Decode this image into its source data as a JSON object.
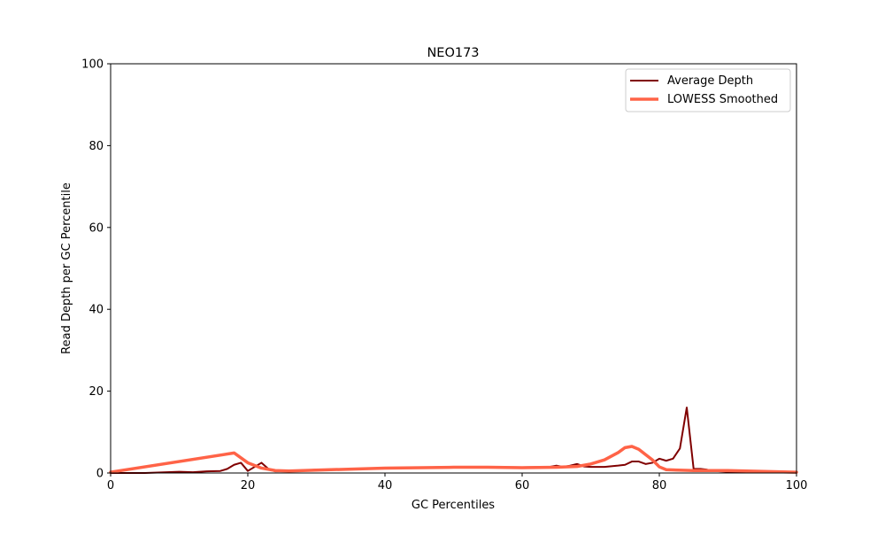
{
  "chart_data": {
    "type": "line",
    "title": "NEO173",
    "xlabel": "GC Percentiles",
    "ylabel": "Read Depth per GC Percentile",
    "xlim": [
      0,
      100
    ],
    "ylim": [
      0,
      100
    ],
    "x_ticks": [
      0,
      20,
      40,
      60,
      80,
      100
    ],
    "y_ticks": [
      0,
      20,
      40,
      60,
      80,
      100
    ],
    "grid": false,
    "legend_position": "top-right",
    "series": [
      {
        "name": "Average Depth",
        "color": "#800000",
        "x": [
          0,
          5,
          10,
          12,
          14,
          16,
          17,
          18,
          19,
          20,
          21,
          22,
          23,
          24,
          26,
          30,
          40,
          50,
          60,
          64,
          65,
          66,
          67,
          68,
          69,
          70,
          72,
          74,
          75,
          76,
          77,
          78,
          79,
          80,
          81,
          82,
          83,
          84,
          85,
          86,
          87,
          88,
          90,
          100
        ],
        "values": [
          0,
          0,
          0.3,
          0.2,
          0.4,
          0.5,
          1.0,
          2.0,
          2.5,
          0.5,
          1.5,
          2.5,
          1.0,
          0.4,
          0.5,
          0.8,
          1.2,
          1.5,
          1.4,
          1.5,
          1.8,
          1.5,
          1.8,
          2.2,
          1.6,
          1.5,
          1.5,
          1.8,
          2.0,
          2.8,
          2.8,
          2.2,
          2.5,
          3.5,
          3.0,
          3.5,
          6.0,
          16.0,
          1.0,
          1.0,
          0.8,
          0.5,
          0.3,
          0.2
        ]
      },
      {
        "name": "LOWESS Smoothed",
        "color": "#ff6347",
        "x": [
          0,
          18,
          20,
          22,
          24,
          26,
          30,
          40,
          50,
          55,
          60,
          65,
          68,
          70,
          72,
          74,
          75,
          76,
          77,
          78,
          79,
          80,
          81,
          85,
          90,
          100
        ],
        "values": [
          0.2,
          4.9,
          2.5,
          1.2,
          0.6,
          0.5,
          0.7,
          1.2,
          1.4,
          1.4,
          1.3,
          1.4,
          1.6,
          2.2,
          3.2,
          5.0,
          6.2,
          6.5,
          5.8,
          4.5,
          3.2,
          1.5,
          0.8,
          0.6,
          0.6,
          0.2
        ]
      }
    ]
  }
}
